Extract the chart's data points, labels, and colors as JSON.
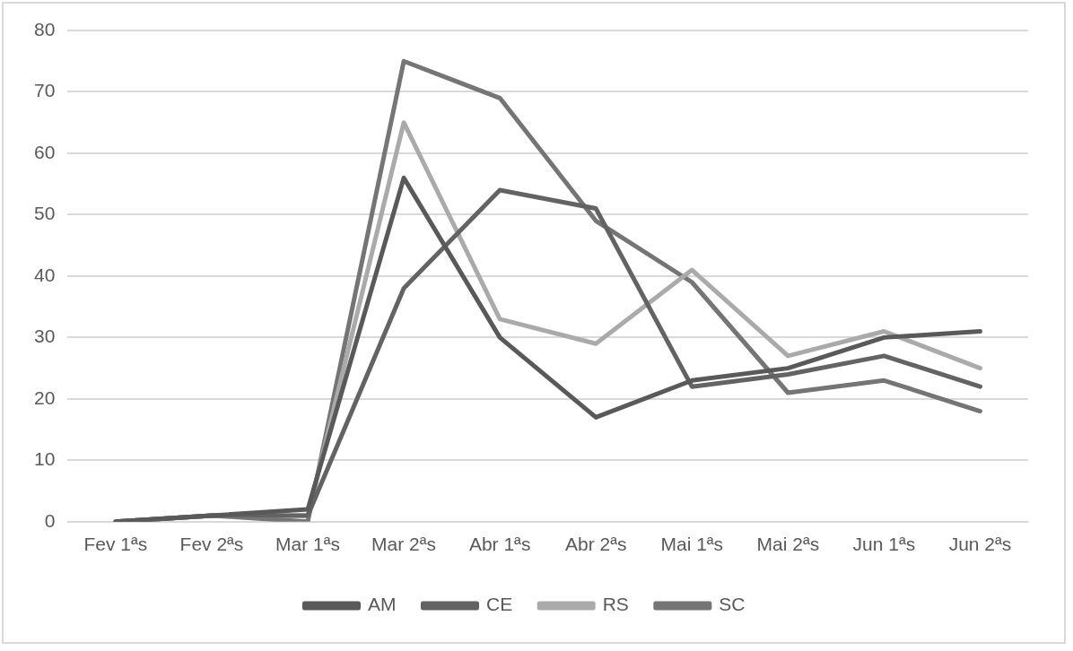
{
  "chart_data": {
    "type": "line",
    "categories": [
      "Fev 1ªs",
      "Fev 2ªs",
      "Mar 1ªs",
      "Mar 2ªs",
      "Abr 1ªs",
      "Abr 2ªs",
      "Mai 1ªs",
      "Mai 2ªs",
      "Jun 1ªs",
      "Jun 2ªs"
    ],
    "series": [
      {
        "name": "AM",
        "color": "#595959",
        "values": [
          0,
          1,
          2,
          56,
          30,
          17,
          23,
          25,
          30,
          31
        ]
      },
      {
        "name": "CE",
        "color": "#636363",
        "values": [
          0,
          1,
          1,
          38,
          54,
          51,
          22,
          24,
          27,
          22
        ]
      },
      {
        "name": "RS",
        "color": "#aaaaaa",
        "values": [
          0,
          1,
          1,
          65,
          33,
          29,
          41,
          27,
          31,
          25
        ]
      },
      {
        "name": "SC",
        "color": "#757575",
        "values": [
          0,
          1,
          0,
          75,
          69,
          49,
          39,
          21,
          23,
          18
        ]
      }
    ],
    "ylim": [
      0,
      80
    ],
    "yticks": [
      0,
      10,
      20,
      30,
      40,
      50,
      60,
      70,
      80
    ],
    "grid": "y",
    "legend": "bottom",
    "marker": "none",
    "line_style": "solid"
  }
}
